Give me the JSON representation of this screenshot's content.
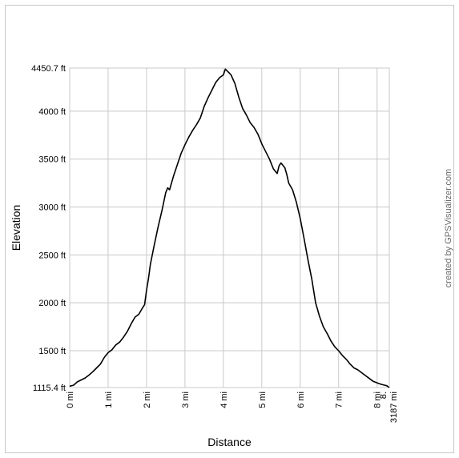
{
  "chart_data": {
    "type": "line",
    "xlabel": "Distance",
    "ylabel": "Elevation",
    "credit": "created by GPSVisualizer.com",
    "xlim": [
      0,
      8.3187
    ],
    "ylim": [
      1115.4,
      4450.7
    ],
    "x_tick_labels": [
      "0 mi",
      "1 mi",
      "2 mi",
      "3 mi",
      "4 mi",
      "5 mi",
      "6 mi",
      "7 mi",
      "8 mi",
      "8.3187 mi"
    ],
    "x_ticks": [
      0,
      1,
      2,
      3,
      4,
      5,
      6,
      7,
      8,
      8.3187
    ],
    "y_tick_labels": [
      "1115.4 ft",
      "1500 ft",
      "2000 ft",
      "2500 ft",
      "3000 ft",
      "3500 ft",
      "4000 ft",
      "4450.7 ft"
    ],
    "y_ticks": [
      1115.4,
      1500,
      2000,
      2500,
      3000,
      3500,
      4000,
      4450.7
    ],
    "grid": true,
    "line_color": "#000000",
    "grid_color": "#c8c8c8",
    "series": [
      {
        "x": [
          0,
          0.1,
          0.2,
          0.3,
          0.4,
          0.5,
          0.6,
          0.7,
          0.8,
          0.9,
          1.0,
          1.1,
          1.2,
          1.3,
          1.4,
          1.5,
          1.6,
          1.7,
          1.8,
          1.9,
          1.95,
          2.0,
          2.05,
          2.1,
          2.2,
          2.3,
          2.4,
          2.5,
          2.55,
          2.6,
          2.65,
          2.7,
          2.8,
          2.9,
          3.0,
          3.1,
          3.2,
          3.3,
          3.4,
          3.5,
          3.6,
          3.7,
          3.8,
          3.9,
          4.0,
          4.05,
          4.1,
          4.15,
          4.2,
          4.3,
          4.4,
          4.5,
          4.6,
          4.7,
          4.8,
          4.9,
          5.0,
          5.1,
          5.2,
          5.3,
          5.4,
          5.45,
          5.5,
          5.6,
          5.65,
          5.7,
          5.8,
          5.9,
          6.0,
          6.1,
          6.2,
          6.3,
          6.4,
          6.5,
          6.6,
          6.7,
          6.8,
          6.9,
          7.0,
          7.1,
          7.2,
          7.3,
          7.4,
          7.5,
          7.6,
          7.7,
          7.8,
          7.9,
          8.0,
          8.1,
          8.2,
          8.25,
          8.3187
        ],
        "y": [
          1130,
          1140,
          1175,
          1195,
          1215,
          1245,
          1280,
          1320,
          1360,
          1430,
          1480,
          1510,
          1560,
          1590,
          1640,
          1700,
          1780,
          1850,
          1880,
          1950,
          1980,
          2130,
          2250,
          2400,
          2600,
          2790,
          2960,
          3150,
          3200,
          3180,
          3250,
          3320,
          3440,
          3560,
          3650,
          3730,
          3800,
          3860,
          3930,
          4050,
          4140,
          4220,
          4300,
          4350,
          4380,
          4440,
          4420,
          4400,
          4380,
          4290,
          4150,
          4030,
          3960,
          3880,
          3830,
          3760,
          3660,
          3580,
          3500,
          3400,
          3350,
          3430,
          3460,
          3410,
          3340,
          3250,
          3180,
          3050,
          2880,
          2670,
          2450,
          2250,
          2000,
          1860,
          1750,
          1680,
          1600,
          1540,
          1500,
          1450,
          1410,
          1360,
          1320,
          1300,
          1270,
          1240,
          1210,
          1180,
          1165,
          1150,
          1140,
          1135,
          1115.4
        ]
      }
    ]
  }
}
